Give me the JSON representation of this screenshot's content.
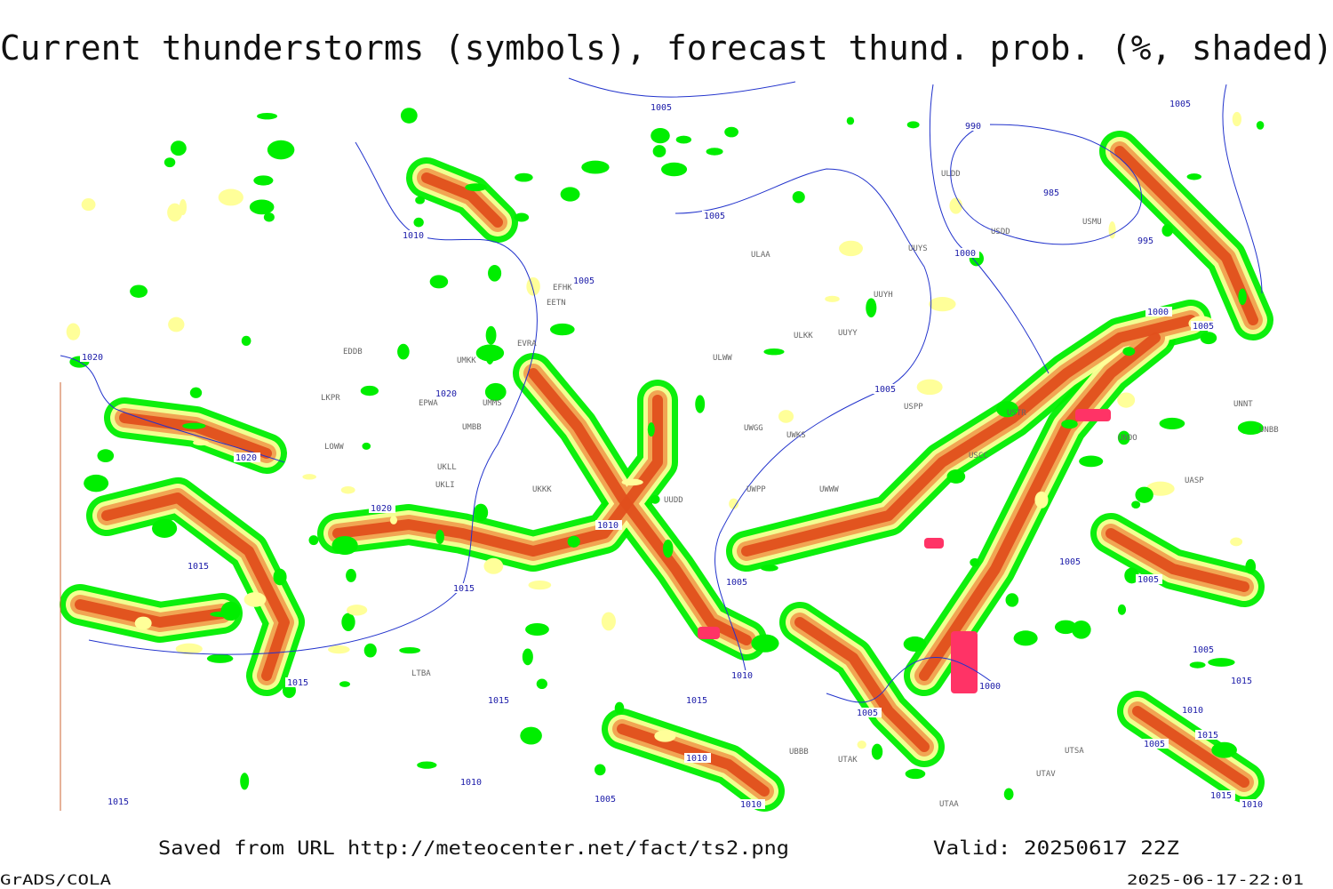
{
  "header": {
    "title": "Current thunderstorms (symbols), forecast thund. prob. (%, shaded)"
  },
  "footer": {
    "source": "Saved from URL http://meteocenter.net/fact/ts2.png",
    "valid": "Valid: 20250617 22Z",
    "software": "GrADS/COLA",
    "timestamp": "2025-06-17-22:01"
  },
  "map": {
    "stations": [
      "ULAA",
      "UUYS",
      "UUYH",
      "ULKK",
      "UUYY",
      "ULWW",
      "UWGG",
      "UWKS",
      "UUDD",
      "UWPP",
      "UWWW",
      "USPP",
      "USTR",
      "USCC",
      "UNOO",
      "UASP",
      "UNBB",
      "UNNT",
      "USDD",
      "USMU",
      "ULDD",
      "EFHK",
      "EETN",
      "EVRA",
      "UMKK",
      "EPWA",
      "UMMS",
      "UMBB",
      "LKPR",
      "EDDB",
      "LOWW",
      "UKLL",
      "UKLI",
      "UKKK",
      "LTBA",
      "UBBB",
      "UTAK",
      "UTSA",
      "UTAV",
      "UTAA"
    ],
    "isobars": [
      "1005",
      "1010",
      "1005",
      "1005",
      "1020",
      "1020",
      "1020",
      "1020",
      "1015",
      "1015",
      "1010",
      "1005",
      "1010",
      "1015",
      "1015",
      "1015",
      "1010",
      "1015",
      "1005",
      "1010",
      "1010",
      "1005",
      "1000",
      "1005",
      "1005",
      "1000",
      "1005",
      "1005",
      "1000",
      "995",
      "985",
      "990",
      "1005",
      "1005",
      "1015",
      "1010",
      "1015",
      "1005",
      "1010",
      "1015"
    ]
  }
}
